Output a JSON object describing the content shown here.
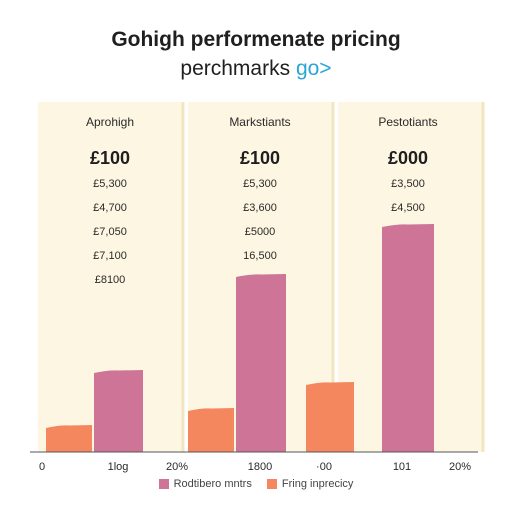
{
  "chart_data": {
    "type": "bar",
    "title": "Gohigh performenate pricing",
    "subtitle": "perchmarks",
    "subtitle_accent": "go>",
    "panels": [
      {
        "heading": "Aprohigh",
        "price": "£100",
        "rows": [
          "£5,300",
          "£4,700",
          "£7,050",
          "£7,100",
          "£8100"
        ]
      },
      {
        "heading": "Markstiants",
        "price": "£100",
        "rows": [
          "£5,300",
          "£3,600",
          "£5000",
          "16,500"
        ]
      },
      {
        "heading": "Pestotiants",
        "price": "£000",
        "rows": [
          "£3,500",
          "£4,500"
        ]
      }
    ],
    "x_tick_labels": [
      "0",
      "1log",
      "20%",
      "1800",
      "·00",
      "101",
      "20%"
    ],
    "bars": [
      {
        "series": "orange",
        "value": 27
      },
      {
        "series": "pink",
        "value": 82
      },
      {
        "series": "orange",
        "value": 44
      },
      {
        "series": "pink",
        "value": 178
      },
      {
        "series": "orange",
        "value": 70
      },
      {
        "series": "pink",
        "value": 228
      }
    ],
    "ylim": [
      0,
      350
    ],
    "legend": [
      {
        "label": "Rodtibero mntrs",
        "color": "#cd7497"
      },
      {
        "label": "Fring inprecicy",
        "color": "#f5875e"
      }
    ],
    "colors": {
      "pink": "#cd7497",
      "orange": "#f5875e",
      "panel": "#fdf6e2",
      "panel_edge": "#f1e6c2"
    }
  }
}
